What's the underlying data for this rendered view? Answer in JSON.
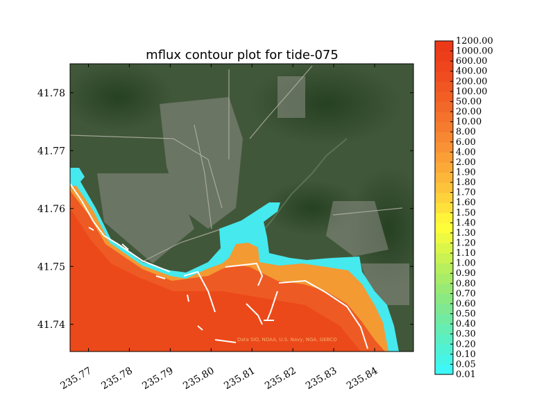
{
  "chart_data": {
    "type": "heatmap",
    "title": "mflux contour plot for tide-075",
    "xlabel": "",
    "ylabel": "",
    "xlim": [
      235.7655,
      235.8495
    ],
    "ylim": [
      41.7353,
      41.785
    ],
    "xticks": [
      235.77,
      235.78,
      235.79,
      235.8,
      235.81,
      235.82,
      235.83,
      235.84
    ],
    "xtick_labels": [
      "235.77",
      "235.78",
      "235.79",
      "235.80",
      "235.81",
      "235.82",
      "235.83",
      "235.84"
    ],
    "yticks": [
      41.74,
      41.75,
      41.76,
      41.77,
      41.78
    ],
    "ytick_labels": [
      "41.74",
      "41.75",
      "41.76",
      "41.77",
      "41.78"
    ],
    "background": "satellite imagery",
    "attribution": "Data SIO, NOAA, U.S. Navy, NGA, GEBCO",
    "colorbar": {
      "levels": [
        "0.01",
        "0.05",
        "0.10",
        "0.20",
        "0.30",
        "0.40",
        "0.50",
        "0.60",
        "0.70",
        "0.80",
        "0.90",
        "1.00",
        "1.10",
        "1.20",
        "1.30",
        "1.40",
        "1.50",
        "1.60",
        "1.70",
        "1.80",
        "1.90",
        "2.00",
        "4.00",
        "6.00",
        "8.00",
        "10.00",
        "20.00",
        "50.00",
        "100.00",
        "200.00",
        "400.00",
        "600.00",
        "1000.00",
        "1200.00"
      ],
      "colors": [
        "#3ff7f7",
        "#46f5e6",
        "#50f2d6",
        "#5bf0c4",
        "#66edb3",
        "#72eba2",
        "#7ee992",
        "#8be982",
        "#99ea74",
        "#a8ec68",
        "#b8ef5c",
        "#c9f252",
        "#dbf649",
        "#edfa41",
        "#fdfd3a",
        "#fff43a",
        "#fee23b",
        "#fdd23b",
        "#fdc33a",
        "#fcb639",
        "#fbaa38",
        "#fa9e36",
        "#f89234",
        "#f78731",
        "#f57c2e",
        "#f4722b",
        "#f26828",
        "#f15f25",
        "#f05622",
        "#ef4d1f",
        "#ee451c",
        "#ed3e1a",
        "#ec3a18"
      ]
    }
  }
}
